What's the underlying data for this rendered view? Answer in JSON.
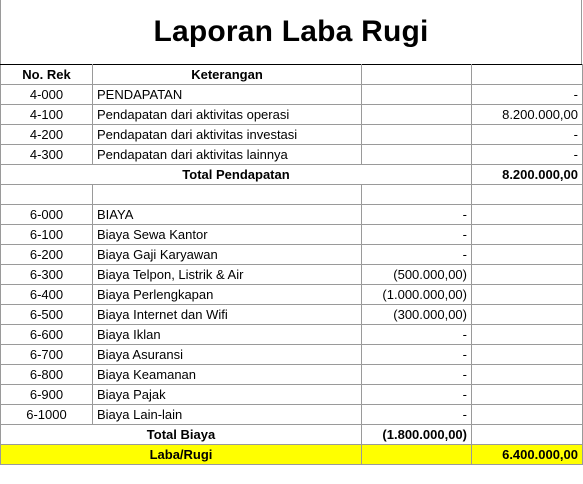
{
  "title": "Laporan Laba Rugi",
  "headers": {
    "no_rek": "No. Rek",
    "keterangan": "Keterangan",
    "col3": "",
    "col4": ""
  },
  "pendapatan": [
    {
      "rek": "4-000",
      "ket": "PENDAPATAN",
      "c3": "",
      "c4": "-"
    },
    {
      "rek": "4-100",
      "ket": "Pendapatan dari aktivitas operasi",
      "c3": "",
      "c4": "8.200.000,00"
    },
    {
      "rek": "4-200",
      "ket": "Pendapatan dari aktivitas investasi",
      "c3": "",
      "c4": "-"
    },
    {
      "rek": "4-300",
      "ket": "Pendapatan dari aktivitas lainnya",
      "c3": "",
      "c4": "-"
    }
  ],
  "total_pendapatan": {
    "label": "Total Pendapatan",
    "c4": "8.200.000,00"
  },
  "biaya": [
    {
      "rek": "6-000",
      "ket": "BIAYA",
      "c3": "-",
      "c4": ""
    },
    {
      "rek": "6-100",
      "ket": "Biaya Sewa Kantor",
      "c3": "-",
      "c4": ""
    },
    {
      "rek": "6-200",
      "ket": "Biaya Gaji Karyawan",
      "c3": "-",
      "c4": ""
    },
    {
      "rek": "6-300",
      "ket": "Biaya Telpon, Listrik & Air",
      "c3": "(500.000,00)",
      "c4": ""
    },
    {
      "rek": "6-400",
      "ket": "Biaya Perlengkapan",
      "c3": "(1.000.000,00)",
      "c4": ""
    },
    {
      "rek": "6-500",
      "ket": "Biaya Internet dan Wifi",
      "c3": "(300.000,00)",
      "c4": ""
    },
    {
      "rek": "6-600",
      "ket": "Biaya Iklan",
      "c3": "-",
      "c4": ""
    },
    {
      "rek": "6-700",
      "ket": "Biaya Asuransi",
      "c3": "-",
      "c4": ""
    },
    {
      "rek": "6-800",
      "ket": "Biaya Keamanan",
      "c3": "-",
      "c4": ""
    },
    {
      "rek": "6-900",
      "ket": "Biaya Pajak",
      "c3": "-",
      "c4": ""
    },
    {
      "rek": "6-1000",
      "ket": "Biaya Lain-lain",
      "c3": "-",
      "c4": ""
    }
  ],
  "total_biaya": {
    "label": "Total Biaya",
    "c3": "(1.800.000,00)"
  },
  "laba_rugi": {
    "label": "Laba/Rugi",
    "c4": "6.400.000,00"
  },
  "colors": {
    "highlight": "#ffff00",
    "grid": "#9a9a9a"
  }
}
